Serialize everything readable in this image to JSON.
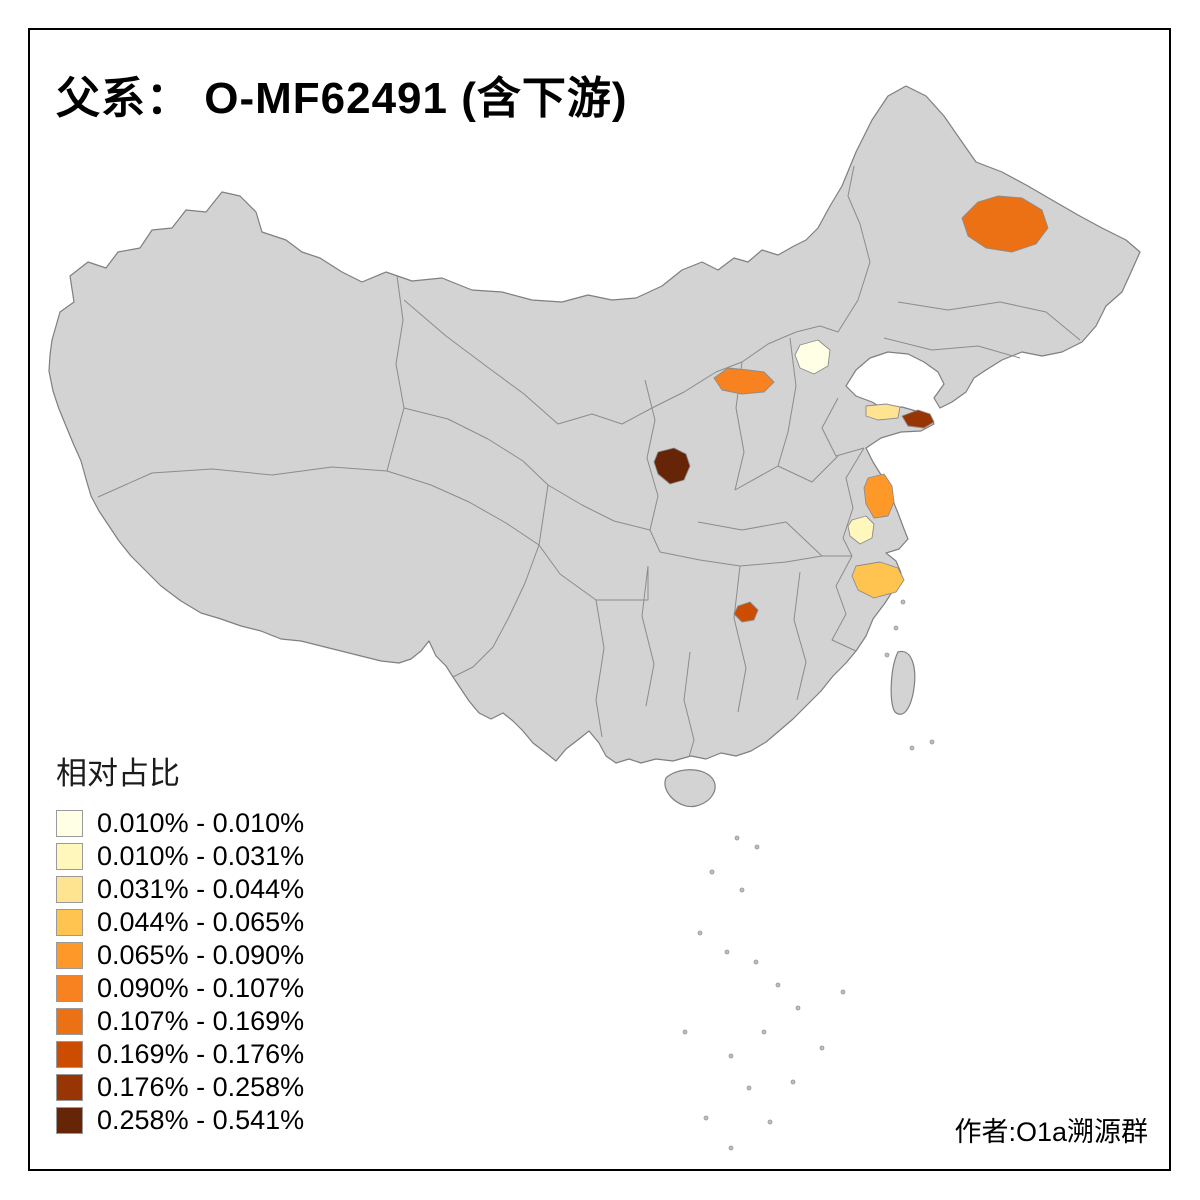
{
  "title": "父系： O-MF62491 (含下游)",
  "author": "作者:O1a溯源群",
  "legend": {
    "title": "相对占比",
    "items": [
      {
        "label": "0.010% - 0.010%",
        "color": "#FFFFE5"
      },
      {
        "label": "0.010% - 0.031%",
        "color": "#FFF7BC"
      },
      {
        "label": "0.031% - 0.044%",
        "color": "#FEE391"
      },
      {
        "label": "0.044% - 0.065%",
        "color": "#FEC44F"
      },
      {
        "label": "0.065% - 0.090%",
        "color": "#FE9929"
      },
      {
        "label": "0.090% - 0.107%",
        "color": "#F8821F"
      },
      {
        "label": "0.107% - 0.169%",
        "color": "#EC7014"
      },
      {
        "label": "0.169% - 0.176%",
        "color": "#CC4C02"
      },
      {
        "label": "0.176% - 0.258%",
        "color": "#993404"
      },
      {
        "label": "0.258% - 0.541%",
        "color": "#662506"
      }
    ]
  },
  "map": {
    "base_fill": "#D3D3D3",
    "boundary_color": "#8C8C8C",
    "regions": [
      {
        "id": "region-heilongjiang",
        "legend_class": 7
      },
      {
        "id": "region-beijing",
        "legend_class": 1
      },
      {
        "id": "region-shanxi",
        "legend_class": 6
      },
      {
        "id": "region-shandong",
        "legend_class": 3
      },
      {
        "id": "region-weihai",
        "legend_class": 9
      },
      {
        "id": "region-shaanxi",
        "legend_class": 10
      },
      {
        "id": "region-jiangsu",
        "legend_class": 5
      },
      {
        "id": "region-jiangsu-south",
        "legend_class": 2
      },
      {
        "id": "region-zhejiang",
        "legend_class": 4
      },
      {
        "id": "region-hunan",
        "legend_class": 8
      }
    ]
  }
}
